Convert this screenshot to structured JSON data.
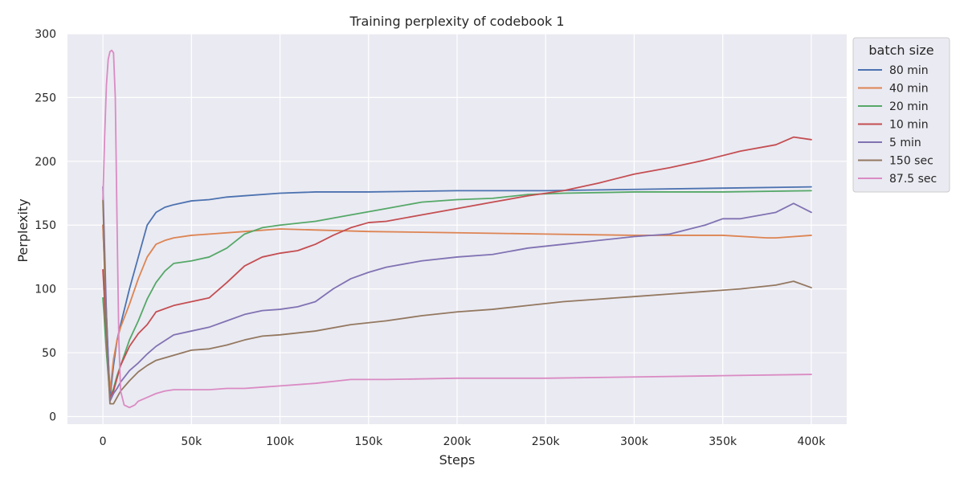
{
  "chart_data": {
    "type": "line",
    "title": "Training perplexity of codebook 1",
    "xlabel": "Steps",
    "ylabel": "Perplexity",
    "xlim": [
      -20000,
      420000
    ],
    "ylim": [
      -6,
      300
    ],
    "x_ticks": [
      0,
      50000,
      100000,
      150000,
      200000,
      250000,
      300000,
      350000,
      400000
    ],
    "x_tick_labels": [
      "0",
      "50k",
      "100k",
      "150k",
      "200k",
      "250k",
      "300k",
      "350k",
      "400k"
    ],
    "y_ticks": [
      0,
      50,
      100,
      150,
      200,
      250,
      300
    ],
    "y_tick_labels": [
      "0",
      "50",
      "100",
      "150",
      "200",
      "250",
      "300"
    ],
    "grid": true,
    "background": "#eaeaf2",
    "legend": {
      "title": "batch size",
      "placement": "outside-top-right"
    },
    "series": [
      {
        "name": "80 min",
        "color": "#4c72b0",
        "points": [
          [
            0,
            150
          ],
          [
            2000,
            80
          ],
          [
            4000,
            15
          ],
          [
            6000,
            40
          ],
          [
            8000,
            60
          ],
          [
            10000,
            72
          ],
          [
            15000,
            100
          ],
          [
            20000,
            125
          ],
          [
            25000,
            150
          ],
          [
            30000,
            160
          ],
          [
            35000,
            164
          ],
          [
            40000,
            166
          ],
          [
            50000,
            169
          ],
          [
            60000,
            170
          ],
          [
            70000,
            172
          ],
          [
            80000,
            173
          ],
          [
            100000,
            175
          ],
          [
            120000,
            176
          ],
          [
            150000,
            176
          ],
          [
            200000,
            177
          ],
          [
            250000,
            177
          ],
          [
            300000,
            178
          ],
          [
            350000,
            179
          ],
          [
            400000,
            180
          ]
        ]
      },
      {
        "name": "40 min",
        "color": "#dd8452",
        "points": [
          [
            0,
            150
          ],
          [
            2000,
            70
          ],
          [
            4000,
            20
          ],
          [
            6000,
            45
          ],
          [
            8000,
            60
          ],
          [
            10000,
            70
          ],
          [
            15000,
            88
          ],
          [
            20000,
            108
          ],
          [
            25000,
            125
          ],
          [
            30000,
            135
          ],
          [
            35000,
            138
          ],
          [
            40000,
            140
          ],
          [
            50000,
            142
          ],
          [
            60000,
            143
          ],
          [
            80000,
            145
          ],
          [
            100000,
            147
          ],
          [
            150000,
            145
          ],
          [
            200000,
            144
          ],
          [
            250000,
            143
          ],
          [
            300000,
            142
          ],
          [
            350000,
            142
          ],
          [
            375000,
            140
          ],
          [
            380000,
            140
          ],
          [
            400000,
            142
          ]
        ]
      },
      {
        "name": "20 min",
        "color": "#55a868",
        "points": [
          [
            0,
            93
          ],
          [
            2000,
            50
          ],
          [
            4000,
            15
          ],
          [
            6000,
            22
          ],
          [
            8000,
            32
          ],
          [
            10000,
            40
          ],
          [
            15000,
            60
          ],
          [
            20000,
            75
          ],
          [
            25000,
            92
          ],
          [
            30000,
            105
          ],
          [
            35000,
            114
          ],
          [
            40000,
            120
          ],
          [
            50000,
            122
          ],
          [
            60000,
            125
          ],
          [
            70000,
            132
          ],
          [
            80000,
            143
          ],
          [
            90000,
            148
          ],
          [
            100000,
            150
          ],
          [
            120000,
            153
          ],
          [
            140000,
            158
          ],
          [
            160000,
            163
          ],
          [
            180000,
            168
          ],
          [
            200000,
            170
          ],
          [
            220000,
            171
          ],
          [
            240000,
            174
          ],
          [
            260000,
            175
          ],
          [
            300000,
            176
          ],
          [
            350000,
            176
          ],
          [
            400000,
            177
          ]
        ]
      },
      {
        "name": "10 min",
        "color": "#c44e52",
        "points": [
          [
            0,
            115
          ],
          [
            2000,
            60
          ],
          [
            4000,
            15
          ],
          [
            6000,
            20
          ],
          [
            8000,
            30
          ],
          [
            10000,
            40
          ],
          [
            15000,
            55
          ],
          [
            20000,
            65
          ],
          [
            25000,
            72
          ],
          [
            30000,
            82
          ],
          [
            40000,
            87
          ],
          [
            50000,
            90
          ],
          [
            60000,
            93
          ],
          [
            70000,
            105
          ],
          [
            80000,
            118
          ],
          [
            90000,
            125
          ],
          [
            100000,
            128
          ],
          [
            110000,
            130
          ],
          [
            120000,
            135
          ],
          [
            130000,
            142
          ],
          [
            140000,
            148
          ],
          [
            150000,
            152
          ],
          [
            160000,
            153
          ],
          [
            180000,
            158
          ],
          [
            200000,
            163
          ],
          [
            220000,
            168
          ],
          [
            240000,
            173
          ],
          [
            260000,
            177
          ],
          [
            280000,
            183
          ],
          [
            300000,
            190
          ],
          [
            320000,
            195
          ],
          [
            340000,
            201
          ],
          [
            360000,
            208
          ],
          [
            380000,
            213
          ],
          [
            390000,
            219
          ],
          [
            400000,
            217
          ]
        ]
      },
      {
        "name": "5 min",
        "color": "#8172b3",
        "points": [
          [
            0,
            180
          ],
          [
            2000,
            80
          ],
          [
            4000,
            12
          ],
          [
            6000,
            18
          ],
          [
            8000,
            22
          ],
          [
            10000,
            27
          ],
          [
            15000,
            36
          ],
          [
            20000,
            42
          ],
          [
            25000,
            49
          ],
          [
            30000,
            55
          ],
          [
            40000,
            64
          ],
          [
            50000,
            67
          ],
          [
            60000,
            70
          ],
          [
            70000,
            75
          ],
          [
            80000,
            80
          ],
          [
            90000,
            83
          ],
          [
            100000,
            84
          ],
          [
            110000,
            86
          ],
          [
            120000,
            90
          ],
          [
            130000,
            100
          ],
          [
            140000,
            108
          ],
          [
            150000,
            113
          ],
          [
            160000,
            117
          ],
          [
            180000,
            122
          ],
          [
            200000,
            125
          ],
          [
            220000,
            127
          ],
          [
            240000,
            132
          ],
          [
            260000,
            135
          ],
          [
            280000,
            138
          ],
          [
            300000,
            141
          ],
          [
            320000,
            143
          ],
          [
            340000,
            150
          ],
          [
            350000,
            155
          ],
          [
            360000,
            155
          ],
          [
            380000,
            160
          ],
          [
            390000,
            167
          ],
          [
            400000,
            160
          ]
        ]
      },
      {
        "name": "150 sec",
        "color": "#937860",
        "points": [
          [
            0,
            170
          ],
          [
            2000,
            60
          ],
          [
            4000,
            10
          ],
          [
            6000,
            10
          ],
          [
            8000,
            15
          ],
          [
            10000,
            20
          ],
          [
            15000,
            28
          ],
          [
            20000,
            35
          ],
          [
            25000,
            40
          ],
          [
            30000,
            44
          ],
          [
            40000,
            48
          ],
          [
            50000,
            52
          ],
          [
            60000,
            53
          ],
          [
            70000,
            56
          ],
          [
            80000,
            60
          ],
          [
            90000,
            63
          ],
          [
            100000,
            64
          ],
          [
            120000,
            67
          ],
          [
            140000,
            72
          ],
          [
            160000,
            75
          ],
          [
            180000,
            79
          ],
          [
            200000,
            82
          ],
          [
            220000,
            84
          ],
          [
            240000,
            87
          ],
          [
            260000,
            90
          ],
          [
            280000,
            92
          ],
          [
            300000,
            94
          ],
          [
            320000,
            96
          ],
          [
            340000,
            98
          ],
          [
            360000,
            100
          ],
          [
            380000,
            103
          ],
          [
            390000,
            106
          ],
          [
            400000,
            101
          ]
        ]
      },
      {
        "name": "87.5 sec",
        "color": "#da8bc3",
        "points": [
          [
            0,
            170
          ],
          [
            1000,
            220
          ],
          [
            2000,
            260
          ],
          [
            3000,
            280
          ],
          [
            4000,
            286
          ],
          [
            5000,
            287
          ],
          [
            6000,
            285
          ],
          [
            7000,
            250
          ],
          [
            8000,
            150
          ],
          [
            9000,
            60
          ],
          [
            10000,
            20
          ],
          [
            12000,
            9
          ],
          [
            15000,
            7
          ],
          [
            18000,
            9
          ],
          [
            20000,
            12
          ],
          [
            25000,
            15
          ],
          [
            30000,
            18
          ],
          [
            35000,
            20
          ],
          [
            40000,
            21
          ],
          [
            50000,
            21
          ],
          [
            60000,
            21
          ],
          [
            70000,
            22
          ],
          [
            80000,
            22
          ],
          [
            90000,
            23
          ],
          [
            100000,
            24
          ],
          [
            120000,
            26
          ],
          [
            140000,
            29
          ],
          [
            160000,
            29
          ],
          [
            200000,
            30
          ],
          [
            250000,
            30
          ],
          [
            300000,
            31
          ],
          [
            350000,
            32
          ],
          [
            400000,
            33
          ]
        ]
      }
    ]
  }
}
